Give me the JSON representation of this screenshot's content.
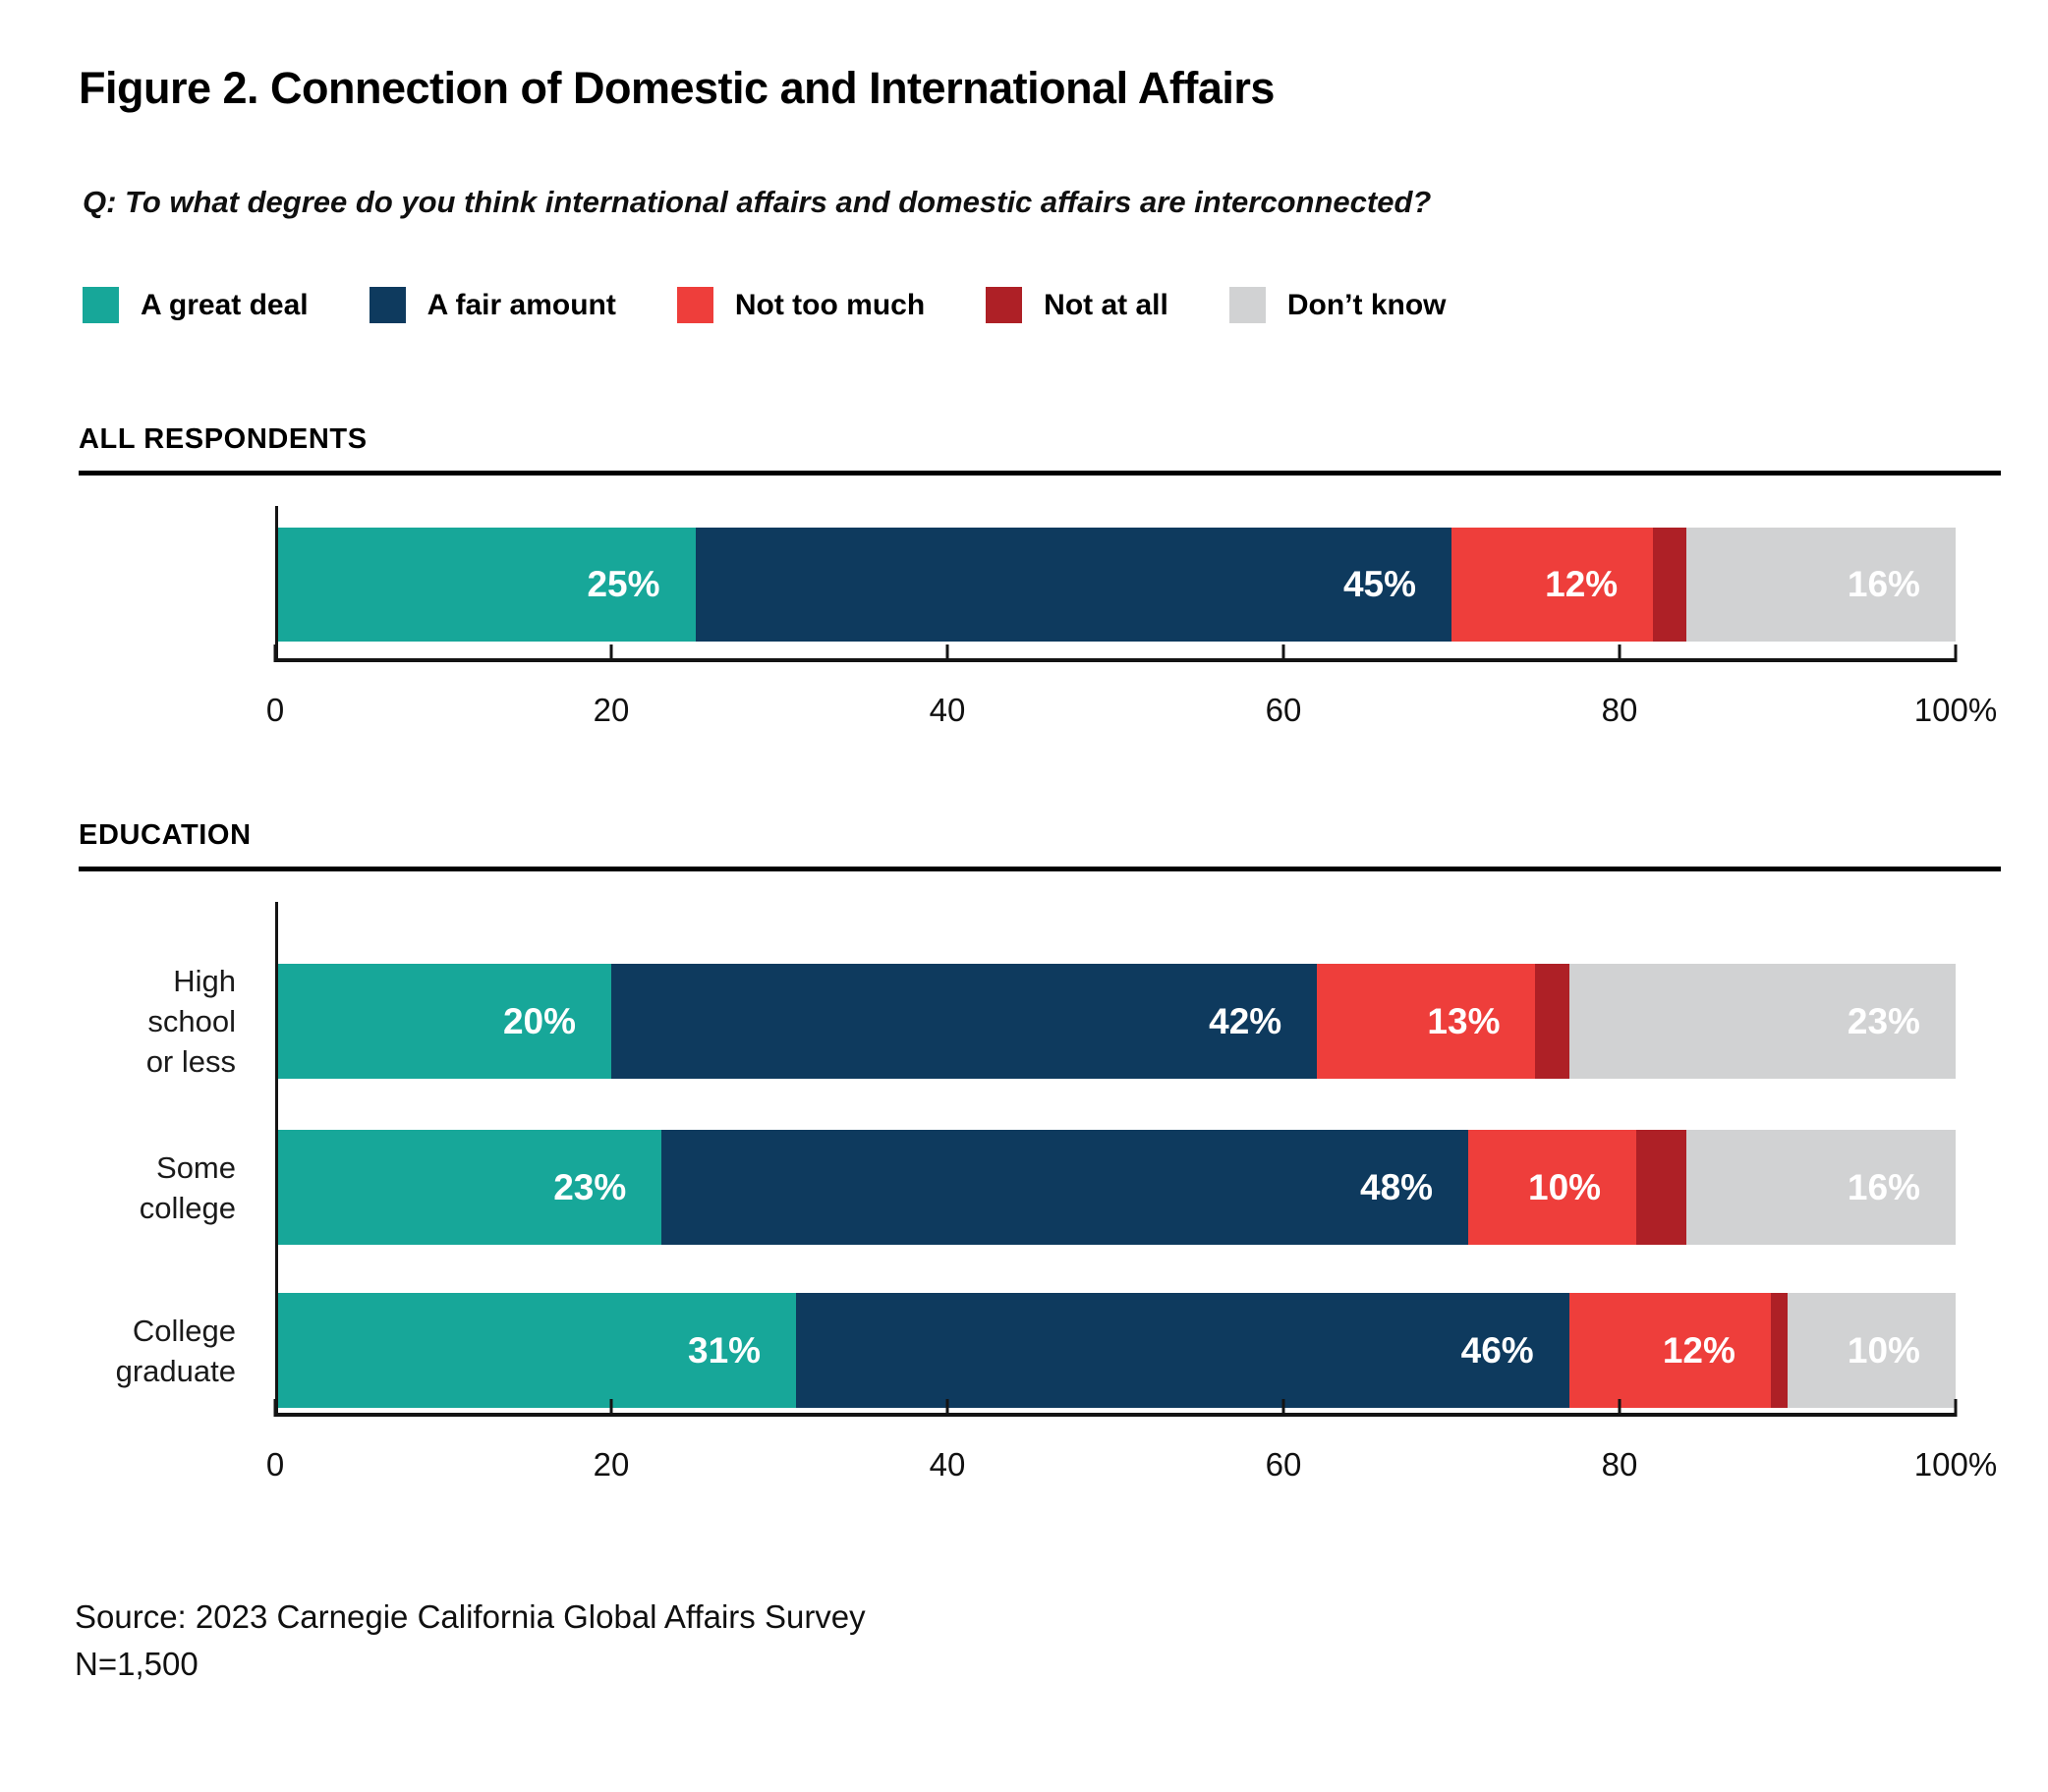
{
  "figure": {
    "title": "Figure 2. Connection of Domestic and International Affairs",
    "question": "Q: To what degree do you think international affairs and domestic affairs are interconnected?",
    "source": "Source: 2023 Carnegie California Global Affairs Survey",
    "sample_size": "N=1,500"
  },
  "colors": {
    "a_great_deal": "#17A799",
    "a_fair_amount": "#0E3A5E",
    "not_too_much": "#EE3E3B",
    "not_at_all": "#AE2026",
    "dont_know": "#D1D2D3",
    "axis": "#141414",
    "value_label": "#FFFFFF"
  },
  "legend": [
    {
      "label": "A great deal",
      "color": "#17A799"
    },
    {
      "label": "A fair amount",
      "color": "#0E3A5E"
    },
    {
      "label": "Not too much",
      "color": "#EE3E3B"
    },
    {
      "label": "Not at all",
      "color": "#AE2026"
    },
    {
      "label": "Don’t know",
      "color": "#D1D2D3"
    }
  ],
  "chart_data": {
    "type": "bar",
    "variant": "horizontal-stacked",
    "unit": "percent",
    "xlim": [
      0,
      100
    ],
    "x_ticks": [
      0,
      20,
      40,
      60,
      80,
      100
    ],
    "x_tick_labels": [
      "0",
      "20",
      "40",
      "60",
      "80",
      "100%"
    ],
    "series_names": [
      "A great deal",
      "A fair amount",
      "Not too much",
      "Not at all",
      "Don’t know"
    ],
    "sections": [
      {
        "heading": "ALL RESPONDENTS",
        "rows": [
          {
            "category_lines": [],
            "values": [
              25,
              45,
              12,
              2,
              16
            ],
            "value_labels": [
              "25%",
              "45%",
              "12%",
              "",
              "16%"
            ]
          }
        ]
      },
      {
        "heading": "EDUCATION",
        "rows": [
          {
            "category": "High school or less",
            "category_lines": [
              "High school",
              "or less"
            ],
            "values": [
              20,
              42,
              13,
              2,
              23
            ],
            "value_labels": [
              "20%",
              "42%",
              "13%",
              "",
              "23%"
            ]
          },
          {
            "category": "Some college",
            "category_lines": [
              "Some college"
            ],
            "values": [
              23,
              48,
              10,
              3,
              16
            ],
            "value_labels": [
              "23%",
              "48%",
              "10%",
              "",
              "16%"
            ]
          },
          {
            "category": "College graduate",
            "category_lines": [
              "College",
              "graduate"
            ],
            "values": [
              31,
              46,
              12,
              1,
              10
            ],
            "value_labels": [
              "31%",
              "46%",
              "12%",
              "",
              "10%"
            ]
          }
        ]
      }
    ]
  }
}
